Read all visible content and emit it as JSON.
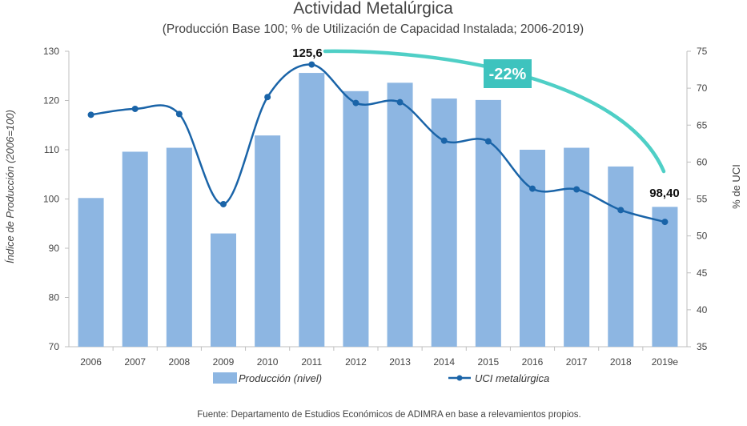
{
  "chart_data": {
    "type": "bar",
    "title": "Actividad Metalúrgica",
    "subtitle": "(Producción Base 100; % de Utilización de Capacidad Instalada; 2006-2019)",
    "categories": [
      "2006",
      "2007",
      "2008",
      "2009",
      "2010",
      "2011",
      "2012",
      "2013",
      "2014",
      "2015",
      "2016",
      "2017",
      "2018",
      "2019e"
    ],
    "series": [
      {
        "name": "Producción (nivel)",
        "type": "bar",
        "axis": "left",
        "values": [
          100.2,
          109.6,
          110.4,
          93.0,
          112.9,
          125.6,
          121.9,
          123.6,
          120.4,
          120.1,
          110.0,
          110.4,
          106.6,
          98.4
        ]
      },
      {
        "name": "UCI metalúrgica",
        "type": "line",
        "axis": "right",
        "values": [
          66.4,
          67.2,
          66.5,
          54.3,
          68.8,
          73.2,
          68.0,
          68.1,
          62.9,
          62.8,
          56.4,
          56.3,
          53.5,
          51.9
        ]
      }
    ],
    "ylabel": "Índice de Producción (2006=100)",
    "y2label": "% de UCI",
    "ylim": [
      70,
      130
    ],
    "y2lim": [
      35,
      75
    ],
    "yticks": [
      "70",
      "80",
      "90",
      "100",
      "110",
      "120",
      "130"
    ],
    "y2ticks": [
      "35",
      "40",
      "45",
      "50",
      "55",
      "60",
      "65",
      "70",
      "75"
    ],
    "annotations": {
      "peak_label": "125,6",
      "last_label": "98,40",
      "change_badge": "-22%"
    },
    "legend_position": "bottom",
    "grid": false,
    "colors": {
      "bars": "#8db6e2",
      "line": "#1a64a8",
      "arrow": "#4fcfc6",
      "badge": "#3ec3be"
    },
    "source": "Fuente: Departamento de Estudios Económicos de ADIMRA en base a relevamientos propios."
  }
}
